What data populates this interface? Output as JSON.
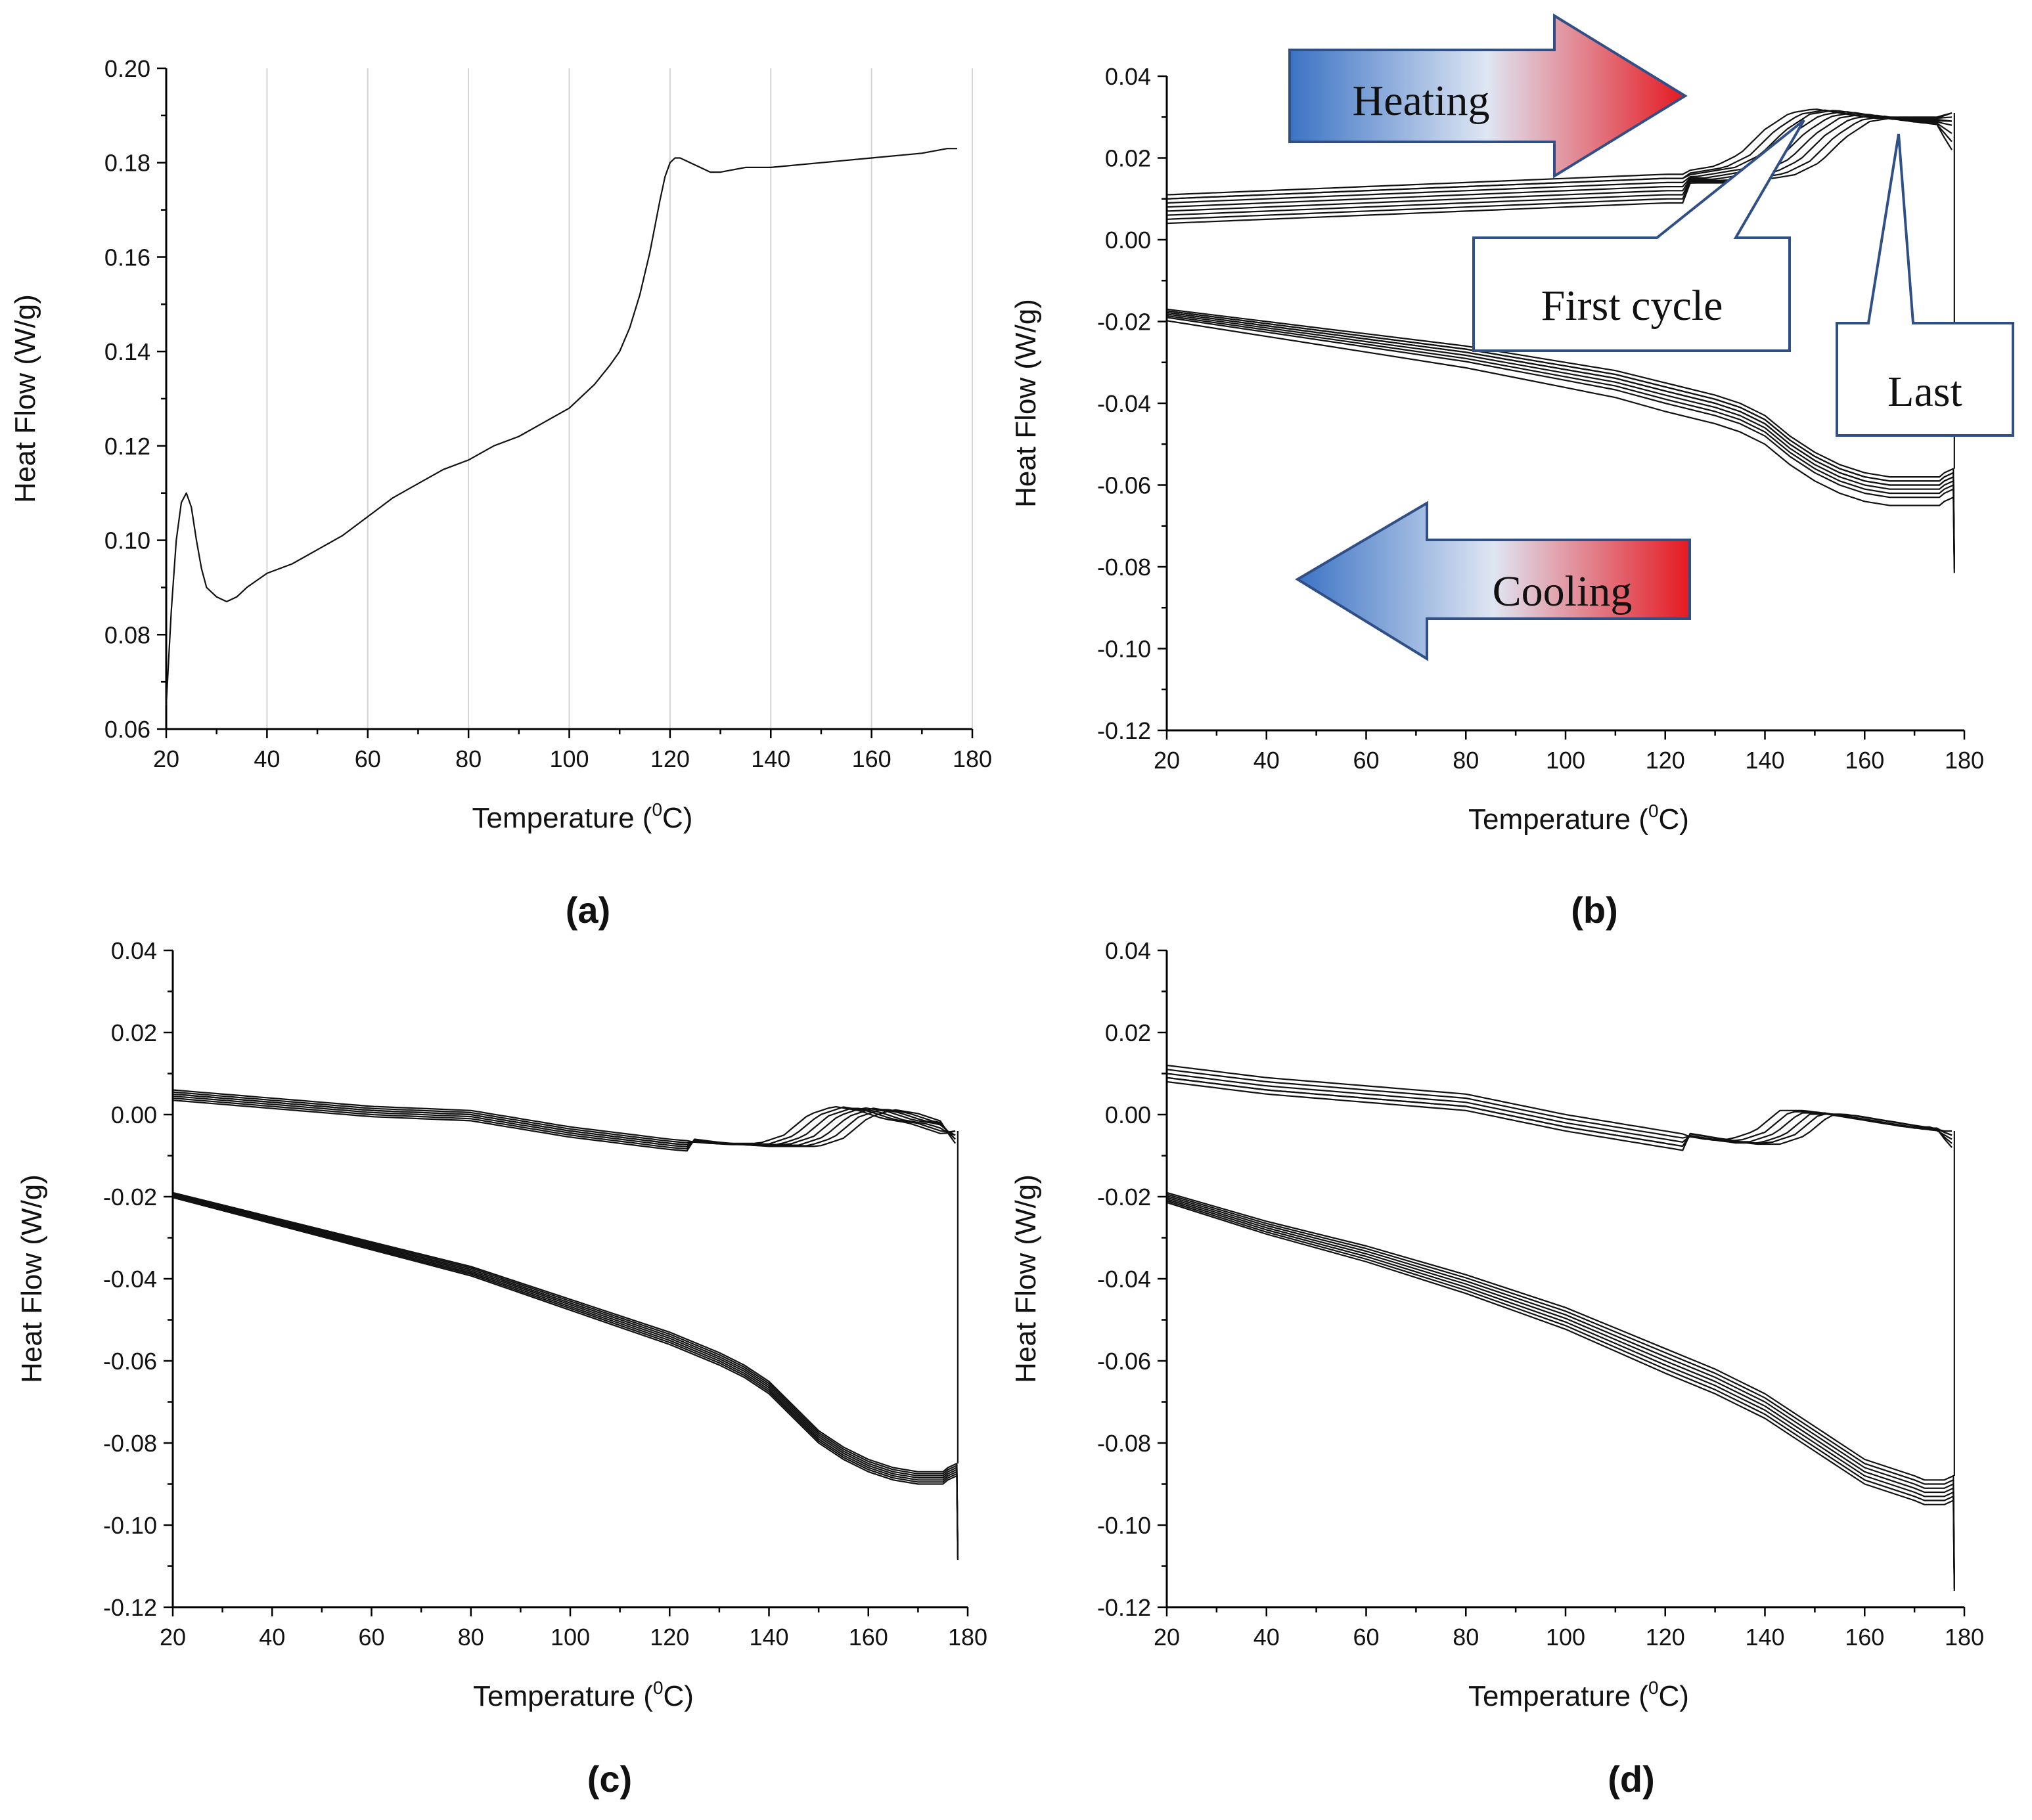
{
  "chart_data": [
    {
      "id": "a",
      "panel_label": "(a)",
      "type": "line",
      "xlabel": "Temperature (",
      "xlabel_sup": "0",
      "xlabel_unit": "C)",
      "ylabel": "Heat Flow (W/g)",
      "xlim": [
        20,
        180
      ],
      "ylim": [
        0.06,
        0.2
      ],
      "grid": "vertical",
      "xticks": [
        20,
        40,
        60,
        80,
        100,
        120,
        140,
        160,
        180
      ],
      "xtick_labels": [
        "20",
        "40",
        "60",
        "80",
        "100",
        "120",
        "140",
        "160",
        "180"
      ],
      "yticks": [
        0.06,
        0.08,
        0.1,
        0.12,
        0.14,
        0.16,
        0.18,
        0.2
      ],
      "ytick_labels": [
        "0.06",
        "0.08",
        "0.10",
        "0.12",
        "0.14",
        "0.16",
        "0.18",
        "0.20"
      ],
      "series": [
        {
          "name": "DSC trace",
          "x": [
            20,
            21,
            22,
            23,
            24,
            25,
            26,
            27,
            28,
            30,
            32,
            34,
            36,
            40,
            45,
            50,
            55,
            60,
            65,
            70,
            75,
            80,
            85,
            90,
            95,
            100,
            105,
            108,
            110,
            112,
            114,
            116,
            118,
            119,
            120,
            121,
            122,
            124,
            126,
            128,
            130,
            135,
            140,
            150,
            160,
            170,
            175,
            177
          ],
          "y": [
            0.065,
            0.085,
            0.1,
            0.108,
            0.11,
            0.107,
            0.1,
            0.094,
            0.09,
            0.088,
            0.087,
            0.088,
            0.09,
            0.093,
            0.095,
            0.098,
            0.101,
            0.105,
            0.109,
            0.112,
            0.115,
            0.117,
            0.12,
            0.122,
            0.125,
            0.128,
            0.133,
            0.137,
            0.14,
            0.145,
            0.152,
            0.161,
            0.172,
            0.177,
            0.18,
            0.181,
            0.181,
            0.18,
            0.179,
            0.178,
            0.178,
            0.179,
            0.179,
            0.18,
            0.181,
            0.182,
            0.183,
            0.183
          ]
        }
      ]
    },
    {
      "id": "b",
      "panel_label": "(b)",
      "type": "line",
      "xlabel": "Temperature (",
      "xlabel_sup": "0",
      "xlabel_unit": "C)",
      "ylabel": "Heat Flow (W/g)",
      "xlim": [
        20,
        180
      ],
      "ylim": [
        -0.12,
        0.04
      ],
      "grid": "none",
      "xticks": [
        20,
        40,
        60,
        80,
        100,
        120,
        140,
        160,
        180
      ],
      "xtick_labels": [
        "20",
        "40",
        "60",
        "80",
        "100",
        "120",
        "140",
        "160",
        "180"
      ],
      "yticks": [
        -0.12,
        -0.1,
        -0.08,
        -0.06,
        -0.04,
        -0.02,
        0.0,
        0.02,
        0.04
      ],
      "ytick_labels": [
        "-0.12",
        "-0.10",
        "-0.08",
        "-0.06",
        "-0.04",
        "-0.02",
        "0.00",
        "0.02",
        "0.04"
      ],
      "heating_template": {
        "x": [
          20,
          40,
          60,
          80,
          100,
          120,
          130,
          135,
          140,
          145,
          150,
          155,
          160,
          165,
          170,
          175,
          177.5
        ],
        "y": [
          0.011,
          0.012,
          0.013,
          0.014,
          0.015,
          0.016,
          0.016,
          0.017,
          0.018,
          0.021,
          0.027,
          0.031,
          0.032,
          0.031,
          0.03,
          0.03,
          0.03
        ]
      },
      "heating_cycles": [
        {
          "dy": -0.0,
          "dx": -10,
          "end": 0.031
        },
        {
          "dy": -0.001,
          "dx": -8,
          "end": 0.031
        },
        {
          "dy": -0.001,
          "dx": -6,
          "end": 0.03
        },
        {
          "dy": -0.002,
          "dx": -4,
          "end": 0.029
        },
        {
          "dy": -0.003,
          "dx": -2,
          "end": 0.029
        },
        {
          "dy": -0.004,
          "dx": 0,
          "end": 0.028
        },
        {
          "dy": -0.005,
          "dx": 2,
          "end": 0.026
        },
        {
          "dy": -0.006,
          "dx": 4,
          "end": 0.024
        },
        {
          "dy": -0.007,
          "dx": 6,
          "end": 0.022
        }
      ],
      "cooling_template": {
        "x": [
          177.5,
          176,
          175,
          172,
          170,
          165,
          160,
          155,
          150,
          145,
          140,
          135,
          130,
          120,
          110,
          100,
          90,
          80,
          60,
          40,
          20
        ],
        "y": [
          -0.056,
          -0.057,
          -0.058,
          -0.058,
          -0.058,
          -0.058,
          -0.057,
          -0.055,
          -0.052,
          -0.048,
          -0.043,
          -0.04,
          -0.038,
          -0.035,
          -0.032,
          -0.03,
          -0.028,
          -0.026,
          -0.023,
          -0.02,
          -0.017
        ]
      },
      "cooling_cycles": [
        {
          "dy": 0.0
        },
        {
          "dy": -0.001
        },
        {
          "dy": -0.001
        },
        {
          "dy": -0.002
        },
        {
          "dy": -0.002
        },
        {
          "dy": -0.003
        },
        {
          "dy": -0.004
        },
        {
          "dy": -0.005
        },
        {
          "dy": -0.007
        }
      ],
      "end_spike": {
        "x": 178,
        "low": -0.078
      },
      "annotations": {
        "heating": "Heating",
        "cooling": "Cooling",
        "first_cycle": "First cycle",
        "last": "Last"
      }
    },
    {
      "id": "c",
      "panel_label": "(c)",
      "type": "line",
      "xlabel": "Temperature (",
      "xlabel_sup": "0",
      "xlabel_unit": "C)",
      "ylabel": "Heat Flow (W/g)",
      "xlim": [
        20,
        180
      ],
      "ylim": [
        -0.12,
        0.04
      ],
      "grid": "none",
      "xticks": [
        20,
        40,
        60,
        80,
        100,
        120,
        140,
        160,
        180
      ],
      "xtick_labels": [
        "20",
        "40",
        "60",
        "80",
        "100",
        "120",
        "140",
        "160",
        "180"
      ],
      "yticks": [
        -0.12,
        -0.1,
        -0.08,
        -0.06,
        -0.04,
        -0.02,
        0.0,
        0.02,
        0.04
      ],
      "ytick_labels": [
        "-0.12",
        "-0.10",
        "-0.08",
        "-0.06",
        "-0.04",
        "-0.02",
        "0.00",
        "0.02",
        "0.04"
      ],
      "heating_template": {
        "x": [
          20,
          40,
          60,
          80,
          100,
          120,
          130,
          135,
          140,
          145,
          150,
          155,
          160,
          165,
          170,
          175,
          177.5
        ],
        "y": [
          0.006,
          0.004,
          0.002,
          0.001,
          -0.003,
          -0.006,
          -0.007,
          -0.007,
          -0.007,
          -0.005,
          0.0,
          0.002,
          0.001,
          -0.001,
          -0.002,
          -0.004,
          -0.005
        ]
      },
      "heating_cycles": [
        {
          "dy": 0.0,
          "dx": -2,
          "end": -0.004
        },
        {
          "dy": -0.0005,
          "dx": 0,
          "end": -0.004
        },
        {
          "dy": -0.001,
          "dx": 2,
          "end": -0.005
        },
        {
          "dy": -0.001,
          "dx": 4,
          "end": -0.005
        },
        {
          "dy": -0.0015,
          "dx": 6,
          "end": -0.006
        },
        {
          "dy": -0.002,
          "dx": 8,
          "end": -0.006
        },
        {
          "dy": -0.0025,
          "dx": 10,
          "end": -0.007
        }
      ],
      "cooling_template": {
        "x": [
          177.5,
          176,
          175,
          172,
          170,
          165,
          160,
          155,
          150,
          145,
          140,
          135,
          130,
          120,
          110,
          100,
          90,
          80,
          60,
          40,
          20
        ],
        "y": [
          -0.085,
          -0.086,
          -0.087,
          -0.087,
          -0.087,
          -0.086,
          -0.084,
          -0.081,
          -0.077,
          -0.071,
          -0.065,
          -0.061,
          -0.058,
          -0.053,
          -0.049,
          -0.045,
          -0.041,
          -0.037,
          -0.031,
          -0.025,
          -0.019
        ]
      },
      "cooling_cycles": [
        {
          "dy": 0.0
        },
        {
          "dy": -0.0005
        },
        {
          "dy": -0.001
        },
        {
          "dy": -0.0015
        },
        {
          "dy": -0.002
        },
        {
          "dy": -0.0025
        },
        {
          "dy": -0.003
        }
      ],
      "end_spike": {
        "x": 178,
        "low": -0.107
      }
    },
    {
      "id": "d",
      "panel_label": "(d)",
      "type": "line",
      "xlabel": "Temperature (",
      "xlabel_sup": "0",
      "xlabel_unit": "C)",
      "ylabel": "Heat Flow (W/g)",
      "xlim": [
        20,
        180
      ],
      "ylim": [
        -0.12,
        0.04
      ],
      "grid": "none",
      "xticks": [
        20,
        40,
        60,
        80,
        100,
        120,
        140,
        160,
        180
      ],
      "xtick_labels": [
        "20",
        "40",
        "60",
        "80",
        "100",
        "120",
        "140",
        "160",
        "180"
      ],
      "yticks": [
        -0.12,
        -0.1,
        -0.08,
        -0.06,
        -0.04,
        -0.02,
        0.0,
        0.02,
        0.04
      ],
      "ytick_labels": [
        "-0.12",
        "-0.10",
        "-0.08",
        "-0.06",
        "-0.04",
        "-0.02",
        "0.00",
        "0.02",
        "0.04"
      ],
      "heating_template": {
        "x": [
          20,
          40,
          60,
          80,
          100,
          120,
          130,
          135,
          140,
          145,
          150,
          155,
          160,
          165,
          170,
          175,
          177.5
        ],
        "y": [
          0.012,
          0.009,
          0.007,
          0.005,
          0.0,
          -0.004,
          -0.006,
          -0.006,
          -0.004,
          0.001,
          0.001,
          0.0,
          -0.001,
          -0.002,
          -0.003,
          -0.003,
          -0.004
        ]
      },
      "heating_cycles": [
        {
          "dy": 0.0,
          "dx": -2,
          "end": -0.004
        },
        {
          "dy": -0.001,
          "dx": 0,
          "end": -0.005
        },
        {
          "dy": -0.002,
          "dx": 2,
          "end": -0.005
        },
        {
          "dy": -0.003,
          "dx": 4,
          "end": -0.006
        },
        {
          "dy": -0.003,
          "dx": 6,
          "end": -0.007
        },
        {
          "dy": -0.004,
          "dx": 8,
          "end": -0.008
        }
      ],
      "cooling_template": {
        "x": [
          177.5,
          176,
          175,
          172,
          170,
          165,
          160,
          155,
          150,
          145,
          140,
          135,
          130,
          120,
          110,
          100,
          90,
          80,
          60,
          40,
          20
        ],
        "y": [
          -0.088,
          -0.089,
          -0.089,
          -0.089,
          -0.088,
          -0.086,
          -0.084,
          -0.08,
          -0.076,
          -0.072,
          -0.068,
          -0.065,
          -0.062,
          -0.057,
          -0.052,
          -0.047,
          -0.043,
          -0.039,
          -0.032,
          -0.026,
          -0.019
        ]
      },
      "cooling_cycles": [
        {
          "dy": 0.0
        },
        {
          "dy": -0.001
        },
        {
          "dy": -0.002
        },
        {
          "dy": -0.003
        },
        {
          "dy": -0.004
        },
        {
          "dy": -0.005
        },
        {
          "dy": -0.006
        }
      ],
      "end_spike": {
        "x": 178,
        "low": -0.113
      }
    }
  ]
}
